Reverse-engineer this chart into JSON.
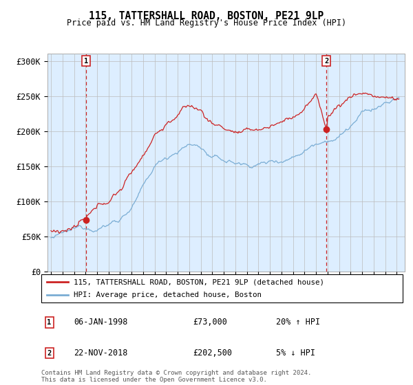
{
  "title": "115, TATTERSHALL ROAD, BOSTON, PE21 9LP",
  "subtitle": "Price paid vs. HM Land Registry's House Price Index (HPI)",
  "ylim": [
    0,
    310000
  ],
  "yticks": [
    0,
    50000,
    100000,
    150000,
    200000,
    250000,
    300000
  ],
  "ytick_labels": [
    "£0",
    "£50K",
    "£100K",
    "£150K",
    "£200K",
    "£250K",
    "£300K"
  ],
  "hpi_color": "#7aadd4",
  "price_color": "#cc2222",
  "dashed_color": "#cc2222",
  "bg_fill_color": "#ddeeff",
  "marker1_t": 1998.04,
  "marker1_v": 73000,
  "marker2_t": 2018.9,
  "marker2_v": 202500,
  "marker1_date_str": "06-JAN-1998",
  "marker2_date_str": "22-NOV-2018",
  "marker1_price_str": "£73,000",
  "marker2_price_str": "£202,500",
  "marker1_pct": "20% ↑ HPI",
  "marker2_pct": "5% ↓ HPI",
  "legend_label1": "115, TATTERSHALL ROAD, BOSTON, PE21 9LP (detached house)",
  "legend_label2": "HPI: Average price, detached house, Boston",
  "footer": "Contains HM Land Registry data © Crown copyright and database right 2024.\nThis data is licensed under the Open Government Licence v3.0.",
  "background_color": "#ffffff",
  "grid_color": "#bbbbbb",
  "xstart": 1994.7,
  "xend": 2025.7
}
